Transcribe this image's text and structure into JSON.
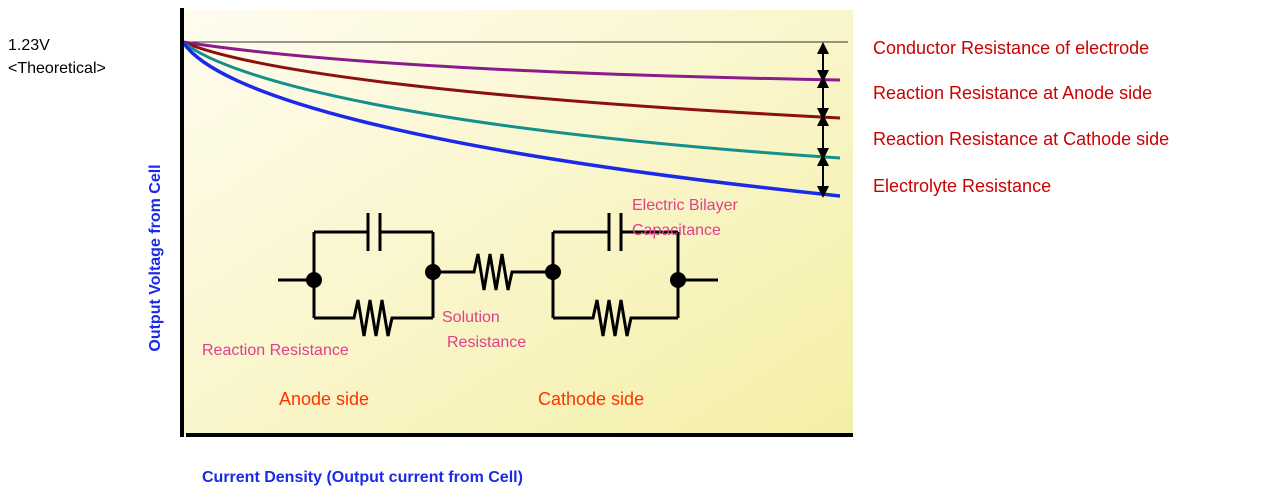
{
  "theoretical": {
    "line1": "1.23V",
    "line2": "<Theoretical>"
  },
  "axes": {
    "ylabel": "Output Voltage from Cell",
    "xlabel": "Current Density (Output current from Cell)"
  },
  "legend": {
    "items": [
      "Conductor Resistance of electrode",
      "Reaction Resistance at Anode side",
      "Reaction Resistance at Cathode side",
      "Electrolyte Resistance"
    ]
  },
  "curves": [
    {
      "id": "conductor",
      "color": "#8b1a8b"
    },
    {
      "id": "anode",
      "color": "#8b1010"
    },
    {
      "id": "cathode",
      "color": "#14908a"
    },
    {
      "id": "electrolyte",
      "color": "#1a2ae8"
    }
  ],
  "circuit": {
    "electric_bilayer_line1": "Electric Bilayer",
    "electric_bilayer_line2": "Capacitance",
    "solution_line1": "Solution",
    "solution_line2": "Resistance",
    "reaction_resistance": "Reaction Resistance",
    "anode_side": "Anode side",
    "cathode_side": "Cathode side"
  },
  "colors": {
    "legend_text": "#cc0000",
    "annotation_pink": "#e0408a",
    "side_label": "#ff3300",
    "axis_label_blue": "#1a2ae8",
    "plot_bg_top": "#fffbe0",
    "plot_bg_bottom": "#f6f2a8"
  }
}
